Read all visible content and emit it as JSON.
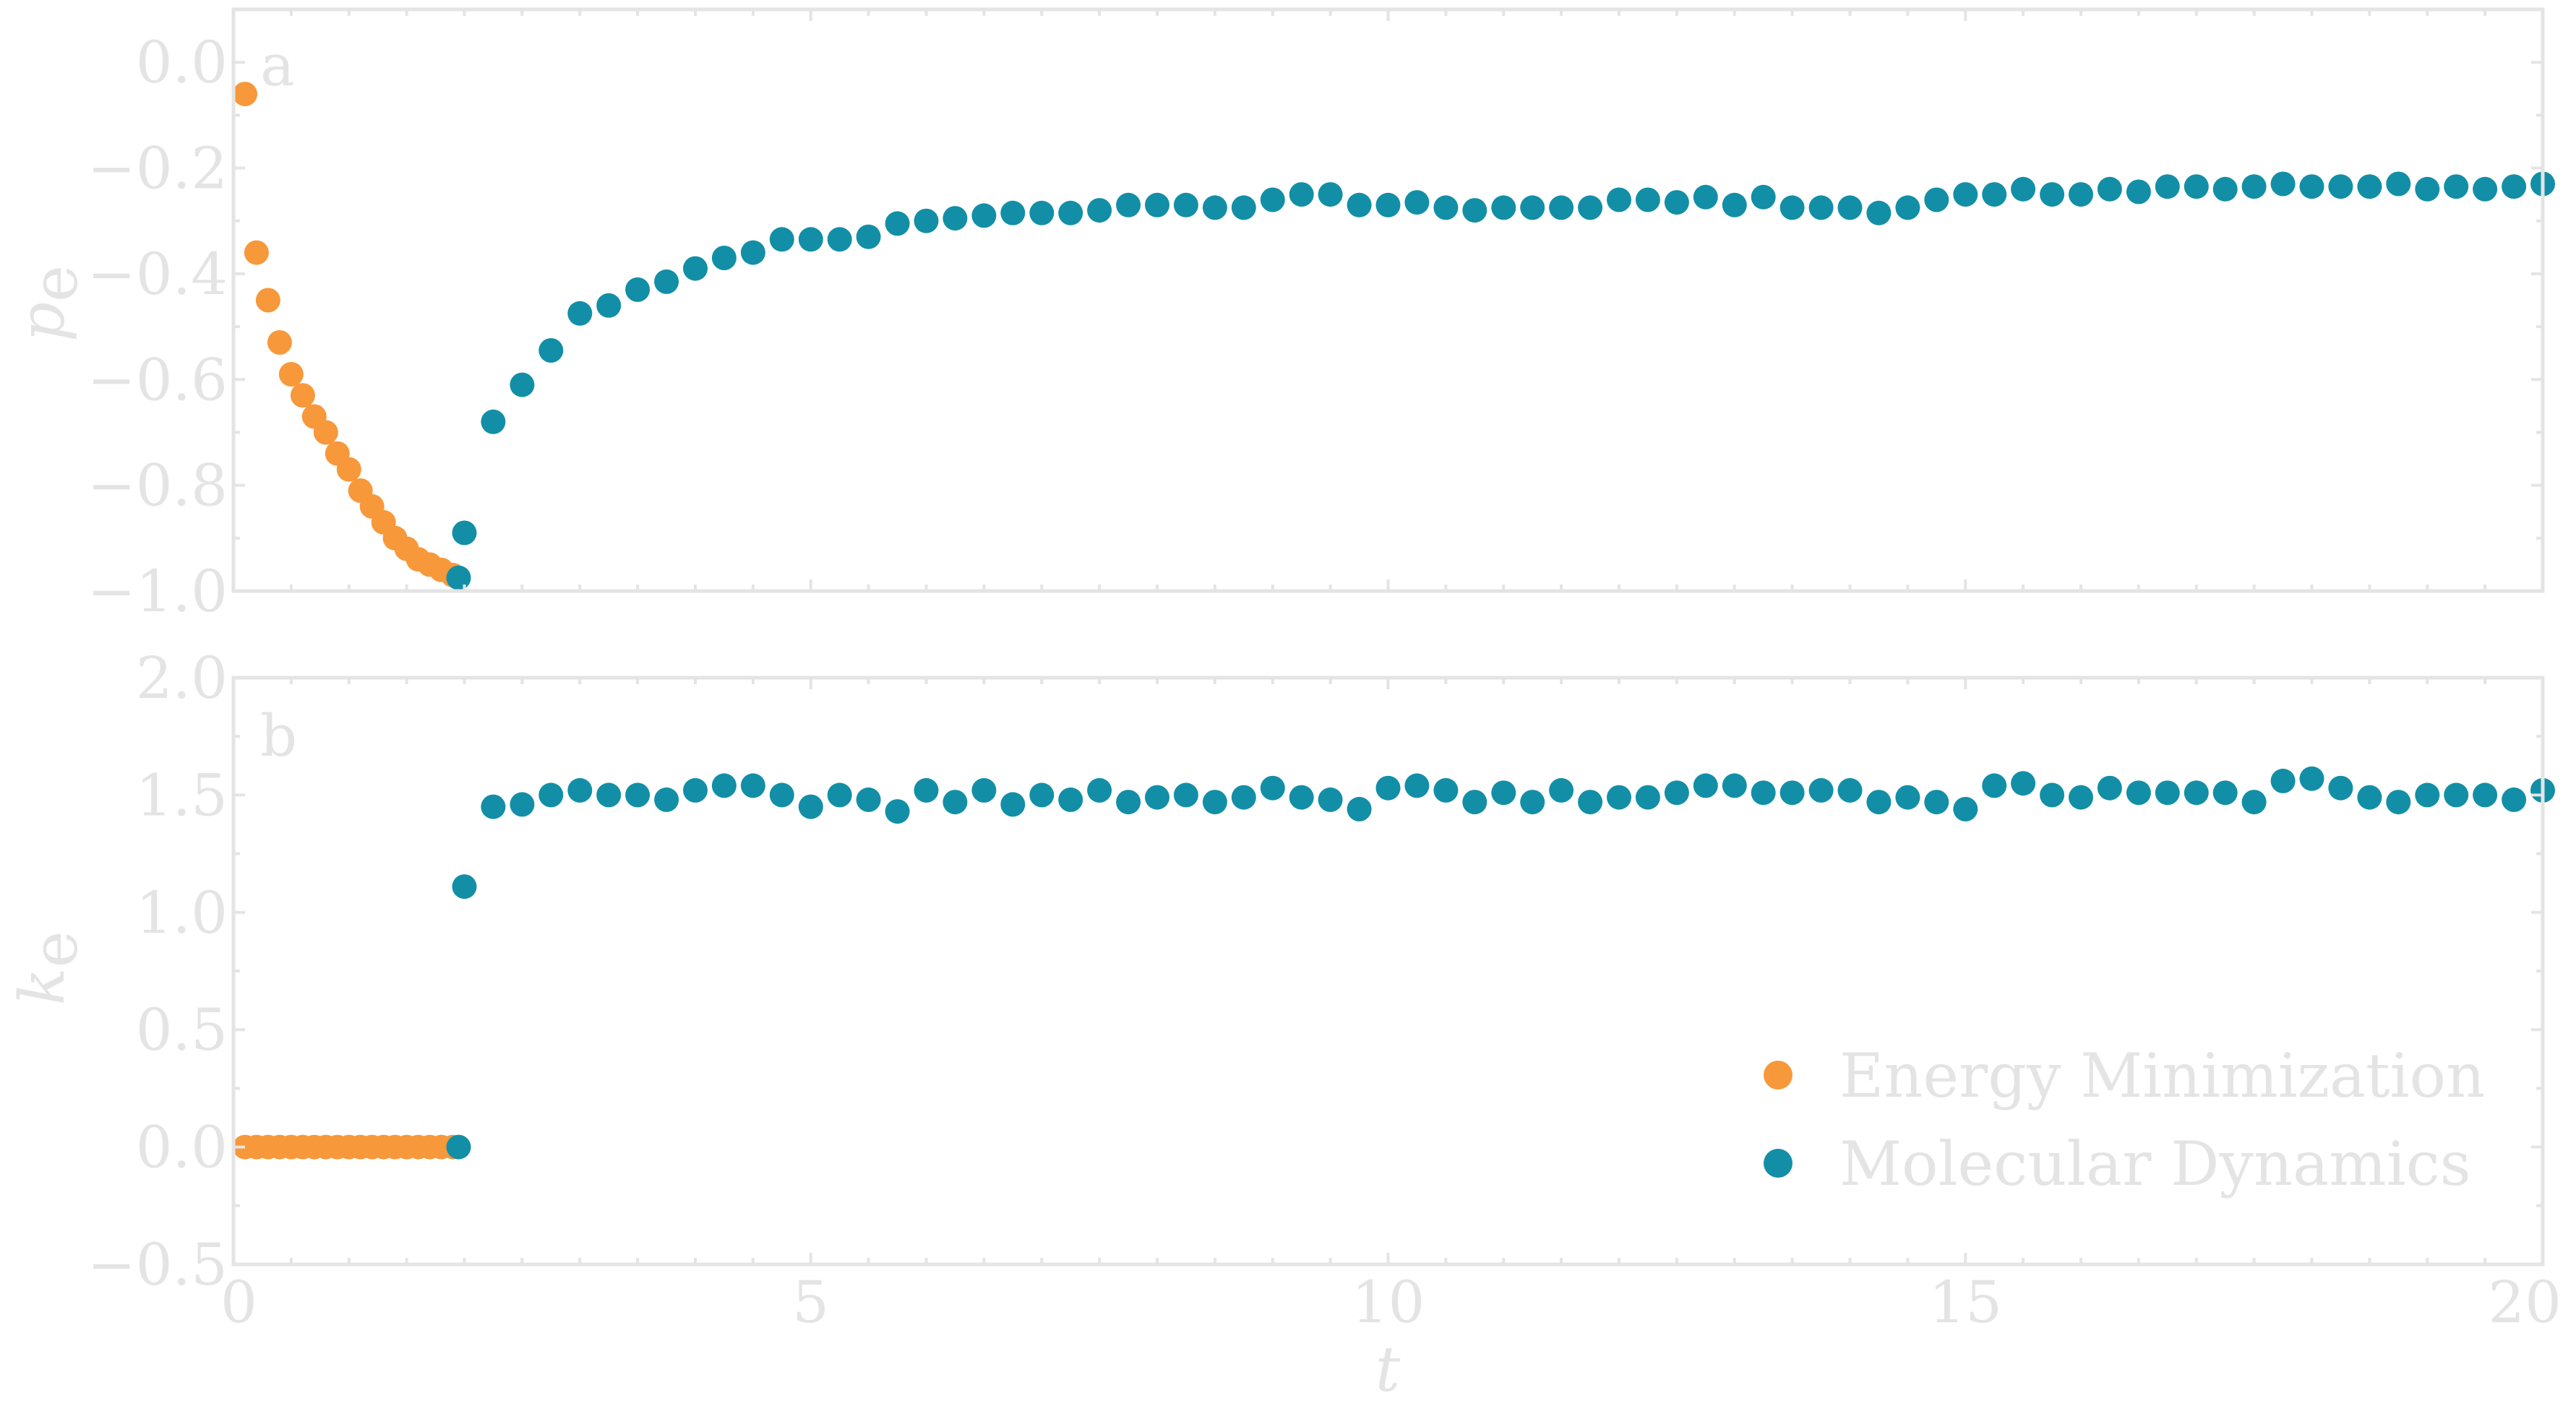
{
  "colors": {
    "energy_minimization": "#f7983a",
    "molecular_dynamics": "#128fa6",
    "axes": "#e4e4e4"
  },
  "chart_data": [
    {
      "type": "scatter",
      "panel_label": "a",
      "xlabel": "t",
      "ylabel": "p",
      "ylabel_sub": "e",
      "xlim": [
        0,
        20
      ],
      "ylim": [
        -1.0,
        0.1
      ],
      "yticks": [
        0.0,
        -0.2,
        -0.4,
        -0.6,
        -0.8,
        -1.0
      ],
      "ytick_labels": [
        "0.0",
        "−0.2",
        "−0.4",
        "−0.6",
        "−0.8",
        "−1.0"
      ],
      "series": [
        {
          "name": "Energy Minimization",
          "color": "#f7983a",
          "x": [
            0.1,
            0.2,
            0.3,
            0.4,
            0.5,
            0.6,
            0.7,
            0.8,
            0.9,
            1.0,
            1.1,
            1.2,
            1.3,
            1.4,
            1.5,
            1.6,
            1.7,
            1.8,
            1.9
          ],
          "y": [
            -0.06,
            -0.36,
            -0.45,
            -0.53,
            -0.59,
            -0.63,
            -0.67,
            -0.7,
            -0.74,
            -0.77,
            -0.81,
            -0.84,
            -0.87,
            -0.9,
            -0.92,
            -0.94,
            -0.95,
            -0.96,
            -0.97
          ]
        },
        {
          "name": "Molecular Dynamics",
          "color": "#128fa6",
          "x": [
            1.95,
            2.0,
            2.25,
            2.5,
            2.75,
            3.0,
            3.25,
            3.5,
            3.75,
            4.0,
            4.25,
            4.5,
            4.75,
            5.0,
            5.25,
            5.5,
            5.75,
            6.0,
            6.25,
            6.5,
            6.75,
            7.0,
            7.25,
            7.5,
            7.75,
            8.0,
            8.25,
            8.5,
            8.75,
            9.0,
            9.25,
            9.5,
            9.75,
            10.0,
            10.25,
            10.5,
            10.75,
            11.0,
            11.25,
            11.5,
            11.75,
            12.0,
            12.25,
            12.5,
            12.75,
            13.0,
            13.25,
            13.5,
            13.75,
            14.0,
            14.25,
            14.5,
            14.75,
            15.0,
            15.25,
            15.5,
            15.75,
            16.0,
            16.25,
            16.5,
            16.75,
            17.0,
            17.25,
            17.5,
            17.75,
            18.0,
            18.25,
            18.5,
            18.75,
            19.0,
            19.25,
            19.5,
            19.75,
            20.0
          ],
          "y": [
            -0.975,
            -0.89,
            -0.68,
            -0.61,
            -0.545,
            -0.475,
            -0.46,
            -0.43,
            -0.415,
            -0.39,
            -0.37,
            -0.36,
            -0.335,
            -0.335,
            -0.335,
            -0.33,
            -0.305,
            -0.3,
            -0.295,
            -0.29,
            -0.285,
            -0.285,
            -0.285,
            -0.28,
            -0.27,
            -0.27,
            -0.27,
            -0.275,
            -0.275,
            -0.26,
            -0.25,
            -0.25,
            -0.27,
            -0.27,
            -0.265,
            -0.275,
            -0.28,
            -0.275,
            -0.275,
            -0.275,
            -0.275,
            -0.26,
            -0.26,
            -0.265,
            -0.255,
            -0.27,
            -0.255,
            -0.275,
            -0.275,
            -0.275,
            -0.285,
            -0.275,
            -0.26,
            -0.25,
            -0.25,
            -0.24,
            -0.25,
            -0.25,
            -0.24,
            -0.245,
            -0.235,
            -0.235,
            -0.24,
            -0.235,
            -0.23,
            -0.235,
            -0.235,
            -0.235,
            -0.23,
            -0.24,
            -0.235,
            -0.24,
            -0.235,
            -0.23
          ]
        }
      ]
    },
    {
      "type": "scatter",
      "panel_label": "b",
      "xlabel": "t",
      "ylabel": "k",
      "ylabel_sub": "e",
      "xlim": [
        0,
        20
      ],
      "ylim": [
        -0.5,
        2.0
      ],
      "xticks": [
        0,
        5,
        10,
        15,
        20
      ],
      "xtick_labels": [
        "0",
        "5",
        "10",
        "15",
        "20"
      ],
      "yticks": [
        2.0,
        1.5,
        1.0,
        0.5,
        0.0,
        -0.5
      ],
      "ytick_labels": [
        "2.0",
        "1.5",
        "1.0",
        "0.5",
        "0.0",
        "−0.5"
      ],
      "legend": {
        "placement": "lower-right",
        "entries": [
          "Energy Minimization",
          "Molecular Dynamics"
        ]
      },
      "series": [
        {
          "name": "Energy Minimization",
          "color": "#f7983a",
          "x": [
            0.1,
            0.2,
            0.3,
            0.4,
            0.5,
            0.6,
            0.7,
            0.8,
            0.9,
            1.0,
            1.1,
            1.2,
            1.3,
            1.4,
            1.5,
            1.6,
            1.7,
            1.8,
            1.9
          ],
          "y": [
            0,
            0,
            0,
            0,
            0,
            0,
            0,
            0,
            0,
            0,
            0,
            0,
            0,
            0,
            0,
            0,
            0,
            0,
            0
          ]
        },
        {
          "name": "Molecular Dynamics",
          "color": "#128fa6",
          "x": [
            1.95,
            2.0,
            2.25,
            2.5,
            2.75,
            3.0,
            3.25,
            3.5,
            3.75,
            4.0,
            4.25,
            4.5,
            4.75,
            5.0,
            5.25,
            5.5,
            5.75,
            6.0,
            6.25,
            6.5,
            6.75,
            7.0,
            7.25,
            7.5,
            7.75,
            8.0,
            8.25,
            8.5,
            8.75,
            9.0,
            9.25,
            9.5,
            9.75,
            10.0,
            10.25,
            10.5,
            10.75,
            11.0,
            11.25,
            11.5,
            11.75,
            12.0,
            12.25,
            12.5,
            12.75,
            13.0,
            13.25,
            13.5,
            13.75,
            14.0,
            14.25,
            14.5,
            14.75,
            15.0,
            15.25,
            15.5,
            15.75,
            16.0,
            16.25,
            16.5,
            16.75,
            17.0,
            17.25,
            17.5,
            17.75,
            18.0,
            18.25,
            18.5,
            18.75,
            19.0,
            19.25,
            19.5,
            19.75,
            20.0
          ],
          "y": [
            0.0,
            1.11,
            1.45,
            1.46,
            1.5,
            1.52,
            1.5,
            1.5,
            1.48,
            1.52,
            1.54,
            1.54,
            1.5,
            1.45,
            1.5,
            1.48,
            1.43,
            1.52,
            1.47,
            1.52,
            1.46,
            1.5,
            1.48,
            1.52,
            1.47,
            1.49,
            1.5,
            1.47,
            1.49,
            1.53,
            1.49,
            1.48,
            1.44,
            1.53,
            1.54,
            1.52,
            1.47,
            1.51,
            1.47,
            1.52,
            1.47,
            1.49,
            1.49,
            1.51,
            1.54,
            1.54,
            1.51,
            1.51,
            1.52,
            1.52,
            1.47,
            1.49,
            1.47,
            1.44,
            1.54,
            1.55,
            1.5,
            1.49,
            1.53,
            1.51,
            1.51,
            1.51,
            1.51,
            1.47,
            1.56,
            1.57,
            1.53,
            1.49,
            1.47,
            1.5,
            1.5,
            1.5,
            1.48,
            1.52
          ]
        }
      ]
    }
  ]
}
